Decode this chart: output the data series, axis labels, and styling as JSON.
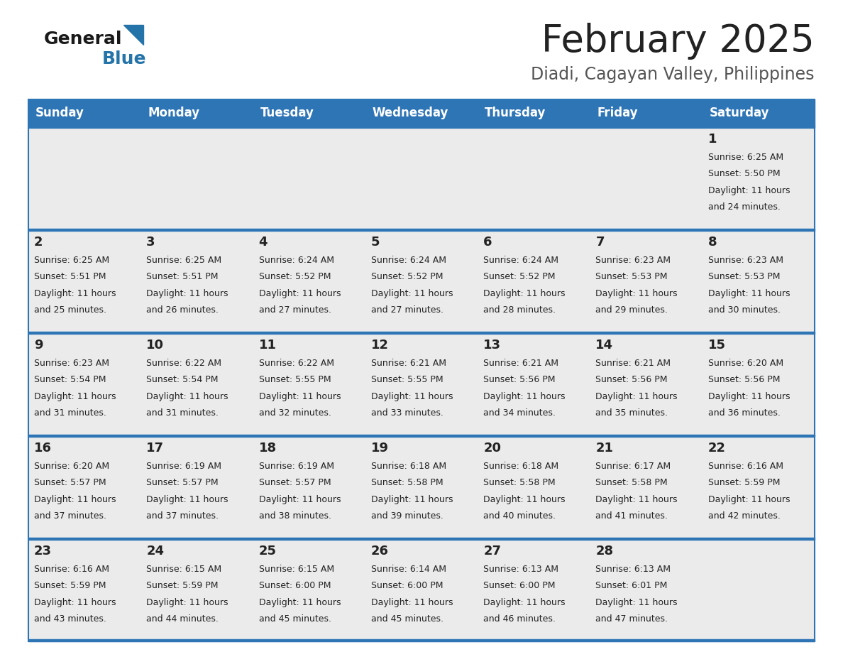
{
  "title": "February 2025",
  "subtitle": "Diadi, Cagayan Valley, Philippines",
  "header_bg_color": "#2E75B6",
  "header_text_color": "#FFFFFF",
  "day_names": [
    "Sunday",
    "Monday",
    "Tuesday",
    "Wednesday",
    "Thursday",
    "Friday",
    "Saturday"
  ],
  "row_bg": "#EBEBEB",
  "separator_color": "#2E75B6",
  "text_color": "#222222",
  "title_color": "#222222",
  "subtitle_color": "#555555",
  "logo_general_color": "#1a1a1a",
  "logo_blue_color": "#2574A9",
  "calendar_data": [
    {
      "day": 1,
      "col": 6,
      "row": 0,
      "sunrise": "6:25 AM",
      "sunset": "5:50 PM",
      "daylight_hours": 11,
      "daylight_minutes": 24
    },
    {
      "day": 2,
      "col": 0,
      "row": 1,
      "sunrise": "6:25 AM",
      "sunset": "5:51 PM",
      "daylight_hours": 11,
      "daylight_minutes": 25
    },
    {
      "day": 3,
      "col": 1,
      "row": 1,
      "sunrise": "6:25 AM",
      "sunset": "5:51 PM",
      "daylight_hours": 11,
      "daylight_minutes": 26
    },
    {
      "day": 4,
      "col": 2,
      "row": 1,
      "sunrise": "6:24 AM",
      "sunset": "5:52 PM",
      "daylight_hours": 11,
      "daylight_minutes": 27
    },
    {
      "day": 5,
      "col": 3,
      "row": 1,
      "sunrise": "6:24 AM",
      "sunset": "5:52 PM",
      "daylight_hours": 11,
      "daylight_minutes": 27
    },
    {
      "day": 6,
      "col": 4,
      "row": 1,
      "sunrise": "6:24 AM",
      "sunset": "5:52 PM",
      "daylight_hours": 11,
      "daylight_minutes": 28
    },
    {
      "day": 7,
      "col": 5,
      "row": 1,
      "sunrise": "6:23 AM",
      "sunset": "5:53 PM",
      "daylight_hours": 11,
      "daylight_minutes": 29
    },
    {
      "day": 8,
      "col": 6,
      "row": 1,
      "sunrise": "6:23 AM",
      "sunset": "5:53 PM",
      "daylight_hours": 11,
      "daylight_minutes": 30
    },
    {
      "day": 9,
      "col": 0,
      "row": 2,
      "sunrise": "6:23 AM",
      "sunset": "5:54 PM",
      "daylight_hours": 11,
      "daylight_minutes": 31
    },
    {
      "day": 10,
      "col": 1,
      "row": 2,
      "sunrise": "6:22 AM",
      "sunset": "5:54 PM",
      "daylight_hours": 11,
      "daylight_minutes": 31
    },
    {
      "day": 11,
      "col": 2,
      "row": 2,
      "sunrise": "6:22 AM",
      "sunset": "5:55 PM",
      "daylight_hours": 11,
      "daylight_minutes": 32
    },
    {
      "day": 12,
      "col": 3,
      "row": 2,
      "sunrise": "6:21 AM",
      "sunset": "5:55 PM",
      "daylight_hours": 11,
      "daylight_minutes": 33
    },
    {
      "day": 13,
      "col": 4,
      "row": 2,
      "sunrise": "6:21 AM",
      "sunset": "5:56 PM",
      "daylight_hours": 11,
      "daylight_minutes": 34
    },
    {
      "day": 14,
      "col": 5,
      "row": 2,
      "sunrise": "6:21 AM",
      "sunset": "5:56 PM",
      "daylight_hours": 11,
      "daylight_minutes": 35
    },
    {
      "day": 15,
      "col": 6,
      "row": 2,
      "sunrise": "6:20 AM",
      "sunset": "5:56 PM",
      "daylight_hours": 11,
      "daylight_minutes": 36
    },
    {
      "day": 16,
      "col": 0,
      "row": 3,
      "sunrise": "6:20 AM",
      "sunset": "5:57 PM",
      "daylight_hours": 11,
      "daylight_minutes": 37
    },
    {
      "day": 17,
      "col": 1,
      "row": 3,
      "sunrise": "6:19 AM",
      "sunset": "5:57 PM",
      "daylight_hours": 11,
      "daylight_minutes": 37
    },
    {
      "day": 18,
      "col": 2,
      "row": 3,
      "sunrise": "6:19 AM",
      "sunset": "5:57 PM",
      "daylight_hours": 11,
      "daylight_minutes": 38
    },
    {
      "day": 19,
      "col": 3,
      "row": 3,
      "sunrise": "6:18 AM",
      "sunset": "5:58 PM",
      "daylight_hours": 11,
      "daylight_minutes": 39
    },
    {
      "day": 20,
      "col": 4,
      "row": 3,
      "sunrise": "6:18 AM",
      "sunset": "5:58 PM",
      "daylight_hours": 11,
      "daylight_minutes": 40
    },
    {
      "day": 21,
      "col": 5,
      "row": 3,
      "sunrise": "6:17 AM",
      "sunset": "5:58 PM",
      "daylight_hours": 11,
      "daylight_minutes": 41
    },
    {
      "day": 22,
      "col": 6,
      "row": 3,
      "sunrise": "6:16 AM",
      "sunset": "5:59 PM",
      "daylight_hours": 11,
      "daylight_minutes": 42
    },
    {
      "day": 23,
      "col": 0,
      "row": 4,
      "sunrise": "6:16 AM",
      "sunset": "5:59 PM",
      "daylight_hours": 11,
      "daylight_minutes": 43
    },
    {
      "day": 24,
      "col": 1,
      "row": 4,
      "sunrise": "6:15 AM",
      "sunset": "5:59 PM",
      "daylight_hours": 11,
      "daylight_minutes": 44
    },
    {
      "day": 25,
      "col": 2,
      "row": 4,
      "sunrise": "6:15 AM",
      "sunset": "6:00 PM",
      "daylight_hours": 11,
      "daylight_minutes": 45
    },
    {
      "day": 26,
      "col": 3,
      "row": 4,
      "sunrise": "6:14 AM",
      "sunset": "6:00 PM",
      "daylight_hours": 11,
      "daylight_minutes": 45
    },
    {
      "day": 27,
      "col": 4,
      "row": 4,
      "sunrise": "6:13 AM",
      "sunset": "6:00 PM",
      "daylight_hours": 11,
      "daylight_minutes": 46
    },
    {
      "day": 28,
      "col": 5,
      "row": 4,
      "sunrise": "6:13 AM",
      "sunset": "6:01 PM",
      "daylight_hours": 11,
      "daylight_minutes": 47
    }
  ]
}
